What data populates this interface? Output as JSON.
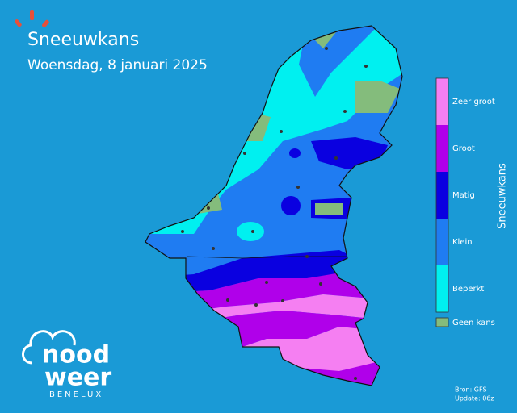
{
  "header": {
    "title": "Sneeuwkans",
    "subtitle": "Woensdag, 8 januari 2025"
  },
  "legend": {
    "title": "Sneeuwkans",
    "items": [
      {
        "label": "Zeer groot",
        "color": "#f57ff2"
      },
      {
        "label": "Groot",
        "color": "#b000ea"
      },
      {
        "label": "Matig",
        "color": "#0a00e0"
      },
      {
        "label": "Klein",
        "color": "#1f7cf2"
      },
      {
        "label": "Beperkt",
        "color": "#00f0f0"
      }
    ],
    "extra": {
      "label": "Geen kans",
      "color": "#84bc7c"
    }
  },
  "source": {
    "line1": "Bron: GFS",
    "line2": "Update: 06z"
  },
  "logo": {
    "line1": "nood",
    "line2": "weer",
    "tagline": "BENELUX"
  }
}
